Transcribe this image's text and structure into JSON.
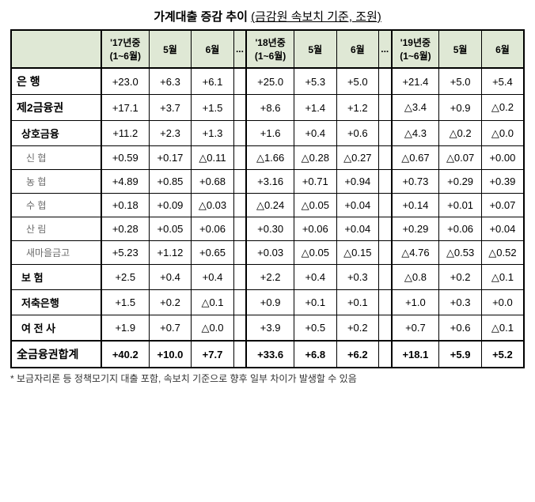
{
  "title_main": "가계대출 증감 추이",
  "title_sub": "(금감원 속보치 기준, 조원)",
  "footnote": "* 보금자리론 등 정책모기지 대출 포함, 속보치 기준으로 향후 일부 차이가 발생할 수 있음",
  "header": {
    "y17_full": "'17년중\n(1~6월)",
    "y18_full": "'18년중\n(1~6월)",
    "y19_full": "'19년중\n(1~6월)",
    "m5": "5월",
    "m6": "6월",
    "dots": "..."
  },
  "rows": [
    {
      "label": "은    행",
      "cls": "rowhead",
      "v17": "+23.0",
      "v17m5": "+6.3",
      "v17m6": "+6.1",
      "v18": "+25.0",
      "v18m5": "+5.3",
      "v18m6": "+5.0",
      "v19": "+21.4",
      "v19m5": "+5.0",
      "v19m6": "+5.4"
    },
    {
      "label": "제2금융권",
      "cls": "rowhead",
      "v17": "+17.1",
      "v17m5": "+3.7",
      "v17m6": "+1.5",
      "v18": "+8.6",
      "v18m5": "+1.4",
      "v18m6": "+1.2",
      "v19": "△3.4",
      "v19m5": "+0.9",
      "v19m6": "△0.2"
    },
    {
      "label": "상호금융",
      "cls": "sub1",
      "v17": "+11.2",
      "v17m5": "+2.3",
      "v17m6": "+1.3",
      "v18": "+1.6",
      "v18m5": "+0.4",
      "v18m6": "+0.6",
      "v19": "△4.3",
      "v19m5": "△0.2",
      "v19m6": "△0.0"
    },
    {
      "label": "신   협",
      "cls": "sub2",
      "v17": "+0.59",
      "v17m5": "+0.17",
      "v17m6": "△0.11",
      "v18": "△1.66",
      "v18m5": "△0.28",
      "v18m6": "△0.27",
      "v19": "△0.67",
      "v19m5": "△0.07",
      "v19m6": "+0.00"
    },
    {
      "label": "농   협",
      "cls": "sub2",
      "v17": "+4.89",
      "v17m5": "+0.85",
      "v17m6": "+0.68",
      "v18": "+3.16",
      "v18m5": "+0.71",
      "v18m6": "+0.94",
      "v19": "+0.73",
      "v19m5": "+0.29",
      "v19m6": "+0.39"
    },
    {
      "label": "수   협",
      "cls": "sub2",
      "v17": "+0.18",
      "v17m5": "+0.09",
      "v17m6": "△0.03",
      "v18": "△0.24",
      "v18m5": "△0.05",
      "v18m6": "+0.04",
      "v19": "+0.14",
      "v19m5": "+0.01",
      "v19m6": "+0.07"
    },
    {
      "label": "산   림",
      "cls": "sub2",
      "v17": "+0.28",
      "v17m5": "+0.05",
      "v17m6": "+0.06",
      "v18": "+0.30",
      "v18m5": "+0.06",
      "v18m6": "+0.04",
      "v19": "+0.29",
      "v19m5": "+0.06",
      "v19m6": "+0.04"
    },
    {
      "label": "새마을금고",
      "cls": "sub2",
      "v17": "+5.23",
      "v17m5": "+1.12",
      "v17m6": "+0.65",
      "v18": "+0.03",
      "v18m5": "△0.05",
      "v18m6": "△0.15",
      "v19": "△4.76",
      "v19m5": "△0.53",
      "v19m6": "△0.52"
    },
    {
      "label": "보    험",
      "cls": "sub1",
      "v17": "+2.5",
      "v17m5": "+0.4",
      "v17m6": "+0.4",
      "v18": "+2.2",
      "v18m5": "+0.4",
      "v18m6": "+0.3",
      "v19": "△0.8",
      "v19m5": "+0.2",
      "v19m6": "△0.1"
    },
    {
      "label": "저축은행",
      "cls": "sub1",
      "v17": "+1.5",
      "v17m5": "+0.2",
      "v17m6": "△0.1",
      "v18": "+0.9",
      "v18m5": "+0.1",
      "v18m6": "+0.1",
      "v19": "+1.0",
      "v19m5": "+0.3",
      "v19m6": "+0.0"
    },
    {
      "label": "여 전 사",
      "cls": "sub1",
      "v17": "+1.9",
      "v17m5": "+0.7",
      "v17m6": "△0.0",
      "v18": "+3.9",
      "v18m5": "+0.5",
      "v18m6": "+0.2",
      "v19": "+0.7",
      "v19m5": "+0.6",
      "v19m6": "△0.1"
    },
    {
      "label": "全금융권합계",
      "cls": "rowhead total",
      "v17": "+40.2",
      "v17m5": "+10.0",
      "v17m6": "+7.7",
      "v18": "+33.6",
      "v18m5": "+6.8",
      "v18m6": "+6.2",
      "v19": "+18.1",
      "v19m5": "+5.9",
      "v19m6": "+5.2"
    }
  ],
  "styling": {
    "header_bg": "#dfe8d5",
    "border_color": "#000000",
    "sub_text_color": "#6b6b6b",
    "font_size_body": 13,
    "font_size_header": 12
  }
}
